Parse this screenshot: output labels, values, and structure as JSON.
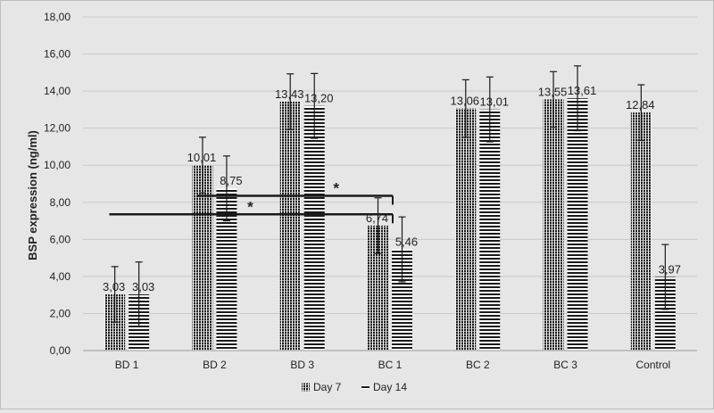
{
  "chart_data": {
    "type": "bar",
    "title": "",
    "xlabel": "",
    "ylabel": "BSP expression (ng/ml)",
    "ylim": [
      0,
      18
    ],
    "ytick_step": 2,
    "y_tick_labels": [
      "0,00",
      "2,00",
      "4,00",
      "6,00",
      "8,00",
      "10,00",
      "12,00",
      "14,00",
      "16,00",
      "18,00"
    ],
    "grid": true,
    "legend_position": "bottom",
    "categories": [
      "BD 1",
      "BD 2",
      "BD 3",
      "BC 1",
      "BC 2",
      "BC 3",
      "Control"
    ],
    "series": [
      {
        "name": "Day 7",
        "pattern": "vertical-dense",
        "values": [
          3.03,
          10.01,
          13.43,
          6.74,
          13.06,
          13.55,
          12.84
        ],
        "labels": [
          "3,03",
          "10,01",
          "13,43",
          "6,74",
          "13,06",
          "13,55",
          "12,84"
        ],
        "errors": [
          1.5,
          1.5,
          1.5,
          1.5,
          1.55,
          1.5,
          1.5
        ]
      },
      {
        "name": "Day 14",
        "pattern": "horizontal-lines",
        "values": [
          3.03,
          8.75,
          13.2,
          5.46,
          13.01,
          13.61,
          3.97
        ],
        "labels": [
          "3,03",
          "8,75",
          "13,20",
          "5,46",
          "13,01",
          "13,61",
          "3,97"
        ],
        "errors": [
          1.75,
          1.75,
          1.75,
          1.75,
          1.75,
          1.75,
          1.75
        ]
      }
    ],
    "annotations": [
      {
        "text": "*",
        "y": 8.35,
        "from_category": 1,
        "to_category": 3
      },
      {
        "text": "*",
        "y": 7.35,
        "from_category": 0,
        "to_category": 3
      }
    ],
    "colors": {
      "bar_dark": "#1a1a1a",
      "bar_light": "#ffffff",
      "background": "#e6e6e6",
      "grid": "#c9c9c9",
      "axis": "#9a9a9a",
      "text": "#222222"
    }
  }
}
